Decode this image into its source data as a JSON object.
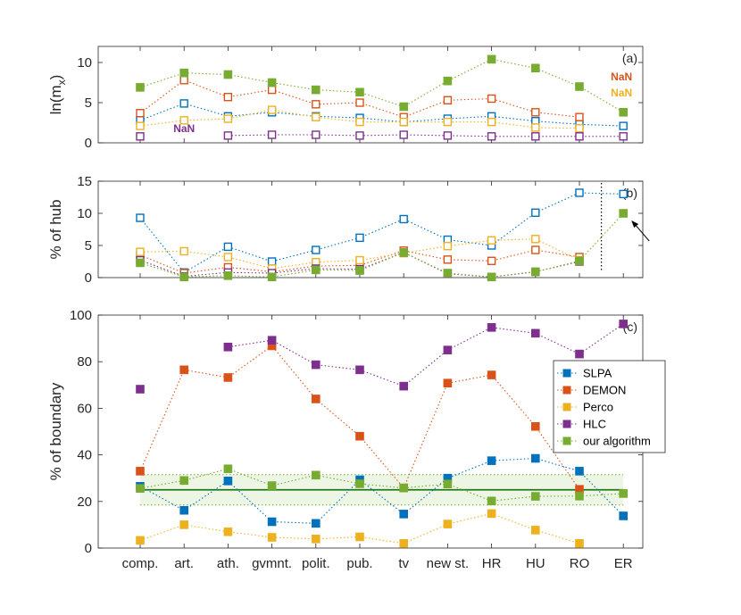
{
  "chart_data": {
    "type": "line",
    "categories": [
      "comp.",
      "art.",
      "ath.",
      "gvmnt.",
      "polit.",
      "pub.",
      "tv",
      "new st.",
      "HR",
      "HU",
      "RO",
      "ER"
    ],
    "colors": {
      "SLPA": "#0072BD",
      "DEMON": "#D95319",
      "Perco": "#EDB120",
      "HLC": "#7E2F8E",
      "our algorithm": "#77AC30",
      "axis": "#262626",
      "band_fill": "#EDF6E4"
    },
    "legend": {
      "position": "right",
      "entries": [
        "SLPA",
        "DEMON",
        "Perco",
        "HLC",
        "our algorithm"
      ]
    },
    "panels": [
      {
        "id": "a",
        "tag": "(a)",
        "ylabel": "ln(m",
        "ylabel_sub": "x",
        "ylabel_close": ")",
        "ylim": [
          0,
          12
        ],
        "yticks": [
          0,
          5,
          10
        ],
        "marker": "open",
        "series": [
          {
            "name": "SLPA",
            "values": [
              2.8,
              4.9,
              3.3,
              3.8,
              3.3,
              3.1,
              2.6,
              3.0,
              3.3,
              2.7,
              2.3,
              2.1
            ]
          },
          {
            "name": "DEMON",
            "values": [
              3.7,
              7.8,
              5.7,
              6.6,
              4.8,
              5.0,
              3.2,
              5.3,
              5.5,
              3.8,
              3.2,
              null
            ]
          },
          {
            "name": "Perco",
            "values": [
              2.1,
              2.8,
              3.0,
              4.1,
              3.2,
              2.6,
              2.6,
              2.6,
              2.6,
              1.9,
              1.8,
              null
            ]
          },
          {
            "name": "HLC",
            "values": [
              0.8,
              null,
              0.9,
              1.0,
              1.0,
              0.9,
              1.0,
              0.9,
              0.8,
              0.8,
              0.8,
              0.8
            ]
          },
          {
            "name": "our algorithm",
            "values": [
              6.9,
              8.7,
              8.5,
              7.5,
              6.6,
              6.3,
              4.5,
              7.7,
              10.4,
              9.3,
              7.0,
              3.8
            ],
            "filled": true
          }
        ],
        "annotations": [
          {
            "text": "NaN",
            "series": "HLC",
            "at": "art."
          },
          {
            "text": "NaN",
            "series": "DEMON",
            "at": "ER"
          },
          {
            "text": "NaN",
            "series": "Perco",
            "at": "ER"
          }
        ]
      },
      {
        "id": "b",
        "tag": "(b)",
        "ylabel": "% of hub",
        "ylim": [
          0,
          15
        ],
        "yticks": [
          0,
          5,
          10,
          15
        ],
        "marker": "open",
        "vline_between": [
          "RO",
          "ER"
        ],
        "arrow_target": {
          "series": "our algorithm",
          "at": "ER"
        },
        "series": [
          {
            "name": "SLPA",
            "values": [
              9.3,
              0.8,
              4.8,
              2.5,
              4.3,
              6.2,
              9.1,
              5.9,
              5.0,
              10.1,
              13.2,
              13.0
            ]
          },
          {
            "name": "DEMON",
            "values": [
              3.5,
              0.7,
              1.6,
              0.9,
              1.8,
              1.9,
              4.2,
              2.8,
              2.6,
              4.3,
              3.2,
              null
            ]
          },
          {
            "name": "Perco",
            "values": [
              4.0,
              4.1,
              3.2,
              1.4,
              2.4,
              2.7,
              3.8,
              4.9,
              5.8,
              6.0,
              2.7,
              null
            ]
          },
          {
            "name": "HLC",
            "values": [
              2.7,
              0.2,
              0.8,
              0.7,
              1.4,
              1.3,
              3.9,
              0.6,
              0.1,
              0.9,
              2.5,
              null
            ]
          },
          {
            "name": "our algorithm",
            "values": [
              2.3,
              0.1,
              0.3,
              0.1,
              1.2,
              1.1,
              3.9,
              0.7,
              0.1,
              0.9,
              2.6,
              10.0
            ],
            "filled": true
          }
        ]
      },
      {
        "id": "c",
        "tag": "(c)",
        "ylabel": "% of boundary",
        "ylim": [
          0,
          100
        ],
        "yticks": [
          0,
          20,
          40,
          60,
          80,
          100
        ],
        "marker": "filled",
        "band": {
          "mean": 25,
          "lower": 18.5,
          "upper": 31.5
        },
        "series": [
          {
            "name": "SLPA",
            "values": [
              26.5,
              16.2,
              28.8,
              11.3,
              10.6,
              29.3,
              14.6,
              30.0,
              37.5,
              38.5,
              33.0,
              13.8
            ]
          },
          {
            "name": "DEMON",
            "values": [
              33.0,
              76.5,
              73.2,
              86.8,
              64.0,
              48.0,
              25.8,
              70.8,
              74.3,
              52.2,
              25.2,
              null
            ]
          },
          {
            "name": "Perco",
            "values": [
              3.3,
              10.0,
              7.0,
              4.6,
              3.9,
              4.8,
              2.0,
              10.3,
              14.8,
              7.7,
              2.0,
              null
            ]
          },
          {
            "name": "HLC",
            "values": [
              68.2,
              null,
              86.3,
              89.2,
              78.7,
              76.5,
              69.5,
              85.0,
              94.7,
              92.2,
              83.3,
              96.2
            ]
          },
          {
            "name": "our algorithm",
            "values": [
              25.6,
              29.0,
              34.0,
              26.8,
              31.3,
              27.6,
              25.8,
              27.5,
              20.2,
              22.2,
              22.3,
              23.4
            ]
          }
        ]
      }
    ]
  }
}
